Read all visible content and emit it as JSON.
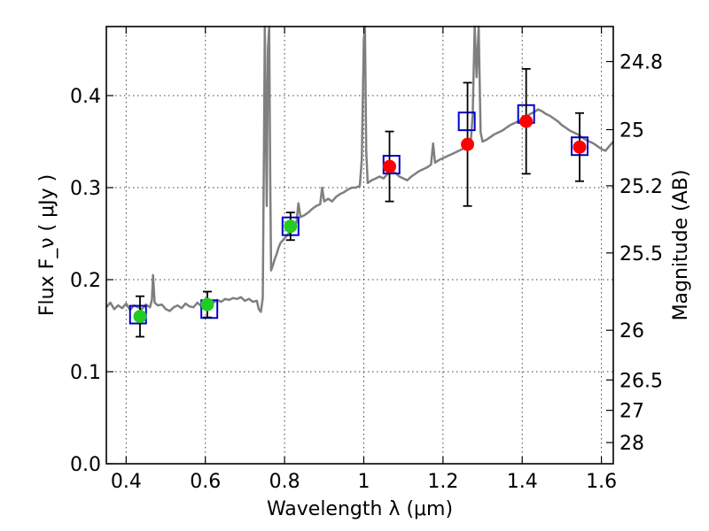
{
  "chart_data": {
    "type": "scatter",
    "xlabel": "Wavelength  λ (μm)",
    "ylabel": "Flux  F_ν  ( μJy )",
    "y2label": "Magnitude (AB)",
    "xlim": [
      0.35,
      1.63
    ],
    "ylim": [
      0.0,
      0.475
    ],
    "grid": true,
    "x_ticks": [
      0.4,
      0.6,
      0.8,
      1.0,
      1.2,
      1.4,
      1.6
    ],
    "x_tick_labels": [
      "0.4",
      "0.6",
      "0.8",
      "1",
      "1.2",
      "1.4",
      "1.6"
    ],
    "y_ticks": [
      0.0,
      0.1,
      0.2,
      0.3,
      0.4
    ],
    "y_tick_labels": [
      "0.0",
      "0.1",
      "0.2",
      "0.3",
      "0.4"
    ],
    "y2_ticks": [
      {
        "flux": 0.437,
        "label": "24.8"
      },
      {
        "flux": 0.363,
        "label": "25"
      },
      {
        "flux": 0.302,
        "label": "25.2"
      },
      {
        "flux": 0.229,
        "label": "25.5"
      },
      {
        "flux": 0.145,
        "label": "26"
      },
      {
        "flux": 0.091,
        "label": "26.5"
      },
      {
        "flux": 0.058,
        "label": "27"
      },
      {
        "flux": 0.023,
        "label": "28"
      }
    ],
    "series": [
      {
        "kind": "line",
        "color": "#7f7f7f",
        "points": [
          [
            0.35,
            0.17
          ],
          [
            0.36,
            0.175
          ],
          [
            0.37,
            0.168
          ],
          [
            0.38,
            0.172
          ],
          [
            0.39,
            0.169
          ],
          [
            0.4,
            0.174
          ],
          [
            0.41,
            0.167
          ],
          [
            0.42,
            0.172
          ],
          [
            0.43,
            0.17
          ],
          [
            0.44,
            0.168
          ],
          [
            0.45,
            0.173
          ],
          [
            0.46,
            0.17
          ],
          [
            0.465,
            0.178
          ],
          [
            0.468,
            0.205
          ],
          [
            0.472,
            0.175
          ],
          [
            0.48,
            0.172
          ],
          [
            0.49,
            0.173
          ],
          [
            0.5,
            0.168
          ],
          [
            0.51,
            0.166
          ],
          [
            0.52,
            0.17
          ],
          [
            0.53,
            0.172
          ],
          [
            0.54,
            0.169
          ],
          [
            0.55,
            0.174
          ],
          [
            0.56,
            0.171
          ],
          [
            0.57,
            0.17
          ],
          [
            0.58,
            0.175
          ],
          [
            0.59,
            0.171
          ],
          [
            0.6,
            0.173
          ],
          [
            0.61,
            0.176
          ],
          [
            0.62,
            0.175
          ],
          [
            0.63,
            0.178
          ],
          [
            0.64,
            0.176
          ],
          [
            0.65,
            0.179
          ],
          [
            0.66,
            0.178
          ],
          [
            0.67,
            0.18
          ],
          [
            0.68,
            0.179
          ],
          [
            0.69,
            0.181
          ],
          [
            0.7,
            0.177
          ],
          [
            0.71,
            0.179
          ],
          [
            0.72,
            0.176
          ],
          [
            0.73,
            0.177
          ],
          [
            0.735,
            0.168
          ],
          [
            0.74,
            0.165
          ],
          [
            0.745,
            0.18
          ],
          [
            0.748,
            0.35
          ],
          [
            0.75,
            0.475
          ],
          [
            0.752,
            0.4
          ],
          [
            0.755,
            0.28
          ],
          [
            0.758,
            0.45
          ],
          [
            0.761,
            0.475
          ],
          [
            0.764,
            0.3
          ],
          [
            0.766,
            0.21
          ],
          [
            0.77,
            0.215
          ],
          [
            0.775,
            0.222
          ],
          [
            0.78,
            0.228
          ],
          [
            0.785,
            0.235
          ],
          [
            0.79,
            0.24
          ],
          [
            0.8,
            0.245
          ],
          [
            0.81,
            0.25
          ],
          [
            0.82,
            0.255
          ],
          [
            0.83,
            0.262
          ],
          [
            0.835,
            0.283
          ],
          [
            0.84,
            0.268
          ],
          [
            0.85,
            0.27
          ],
          [
            0.86,
            0.273
          ],
          [
            0.87,
            0.277
          ],
          [
            0.88,
            0.28
          ],
          [
            0.89,
            0.282
          ],
          [
            0.895,
            0.3
          ],
          [
            0.9,
            0.285
          ],
          [
            0.91,
            0.288
          ],
          [
            0.92,
            0.285
          ],
          [
            0.93,
            0.29
          ],
          [
            0.94,
            0.293
          ],
          [
            0.95,
            0.295
          ],
          [
            0.96,
            0.298
          ],
          [
            0.97,
            0.3
          ],
          [
            0.98,
            0.3
          ],
          [
            0.99,
            0.302
          ],
          [
            0.995,
            0.33
          ],
          [
            1.0,
            0.46
          ],
          [
            1.003,
            0.475
          ],
          [
            1.006,
            0.34
          ],
          [
            1.01,
            0.305
          ],
          [
            1.02,
            0.308
          ],
          [
            1.03,
            0.31
          ],
          [
            1.04,
            0.312
          ],
          [
            1.05,
            0.31
          ],
          [
            1.06,
            0.315
          ],
          [
            1.07,
            0.318
          ],
          [
            1.08,
            0.316
          ],
          [
            1.09,
            0.312
          ],
          [
            1.1,
            0.31
          ],
          [
            1.11,
            0.308
          ],
          [
            1.12,
            0.312
          ],
          [
            1.13,
            0.315
          ],
          [
            1.14,
            0.318
          ],
          [
            1.15,
            0.32
          ],
          [
            1.16,
            0.322
          ],
          [
            1.17,
            0.325
          ],
          [
            1.175,
            0.348
          ],
          [
            1.18,
            0.327
          ],
          [
            1.19,
            0.33
          ],
          [
            1.2,
            0.332
          ],
          [
            1.21,
            0.334
          ],
          [
            1.22,
            0.336
          ],
          [
            1.23,
            0.338
          ],
          [
            1.24,
            0.34
          ],
          [
            1.25,
            0.342
          ],
          [
            1.26,
            0.345
          ],
          [
            1.27,
            0.348
          ],
          [
            1.275,
            0.38
          ],
          [
            1.28,
            0.475
          ],
          [
            1.285,
            0.42
          ],
          [
            1.29,
            0.475
          ],
          [
            1.295,
            0.36
          ],
          [
            1.3,
            0.35
          ],
          [
            1.31,
            0.352
          ],
          [
            1.32,
            0.355
          ],
          [
            1.33,
            0.358
          ],
          [
            1.34,
            0.36
          ],
          [
            1.35,
            0.362
          ],
          [
            1.36,
            0.365
          ],
          [
            1.37,
            0.368
          ],
          [
            1.38,
            0.37
          ],
          [
            1.39,
            0.372
          ],
          [
            1.4,
            0.374
          ],
          [
            1.41,
            0.377
          ],
          [
            1.42,
            0.38
          ],
          [
            1.43,
            0.382
          ],
          [
            1.44,
            0.385
          ],
          [
            1.45,
            0.383
          ],
          [
            1.46,
            0.38
          ],
          [
            1.47,
            0.378
          ],
          [
            1.48,
            0.375
          ],
          [
            1.49,
            0.372
          ],
          [
            1.5,
            0.368
          ],
          [
            1.51,
            0.365
          ],
          [
            1.52,
            0.362
          ],
          [
            1.53,
            0.36
          ],
          [
            1.54,
            0.358
          ],
          [
            1.55,
            0.355
          ],
          [
            1.56,
            0.352
          ],
          [
            1.57,
            0.35
          ],
          [
            1.58,
            0.348
          ],
          [
            1.59,
            0.345
          ],
          [
            1.6,
            0.342
          ],
          [
            1.61,
            0.34
          ],
          [
            1.62,
            0.345
          ],
          [
            1.63,
            0.35
          ]
        ]
      },
      {
        "kind": "boxes",
        "color": "#0000cc",
        "points": [
          [
            0.43,
            0.162
          ],
          [
            0.61,
            0.168
          ],
          [
            0.815,
            0.258
          ],
          [
            1.07,
            0.325
          ],
          [
            1.26,
            0.372
          ],
          [
            1.41,
            0.38
          ],
          [
            1.545,
            0.345
          ]
        ]
      },
      {
        "kind": "errorbar-points",
        "color": "#22cc22",
        "points": [
          {
            "x": 0.435,
            "y": 0.16,
            "err": 0.022
          },
          {
            "x": 0.605,
            "y": 0.173,
            "err": 0.014
          },
          {
            "x": 0.815,
            "y": 0.258,
            "err": 0.015
          }
        ]
      },
      {
        "kind": "errorbar-points",
        "color": "#ff0000",
        "points": [
          {
            "x": 1.065,
            "y": 0.323,
            "err": 0.038
          },
          {
            "x": 1.262,
            "y": 0.347,
            "err": 0.067
          },
          {
            "x": 1.41,
            "y": 0.372,
            "err": 0.057
          },
          {
            "x": 1.545,
            "y": 0.344,
            "err": 0.037
          }
        ]
      }
    ]
  }
}
